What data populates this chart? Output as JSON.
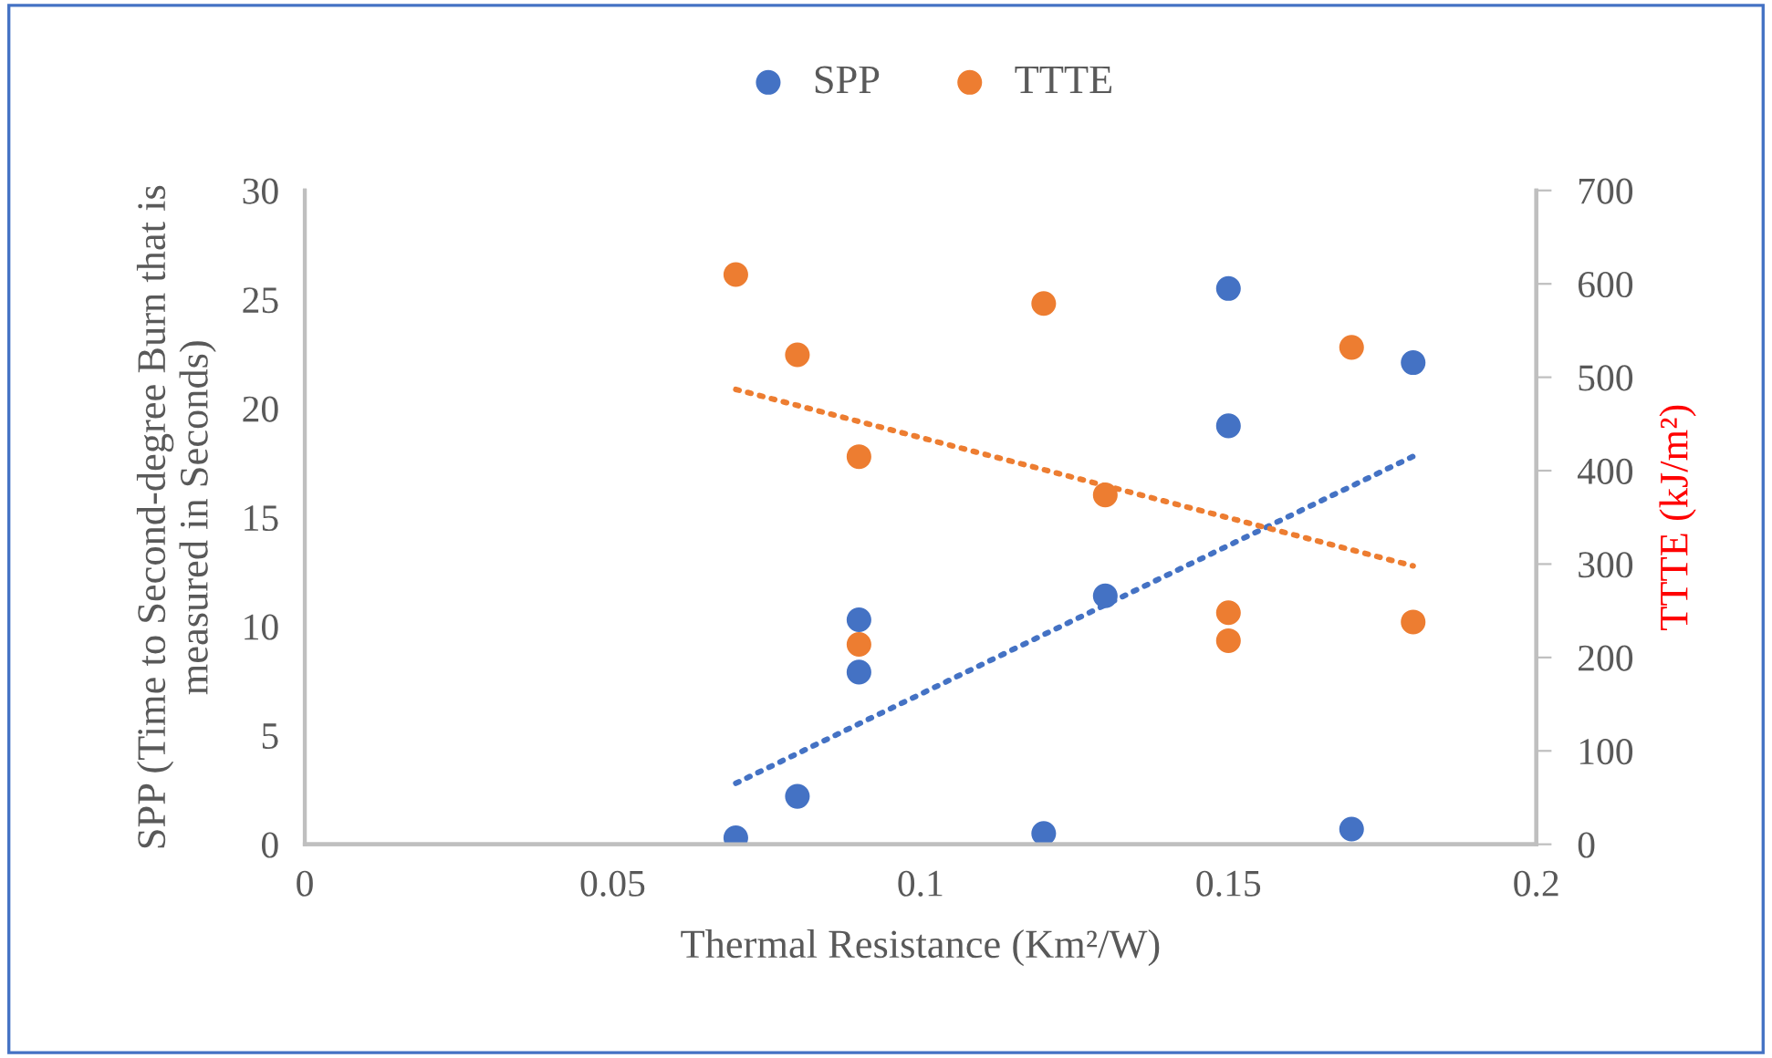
{
  "chart_data": {
    "type": "scatter",
    "xlabel": "Thermal Resistance (Km²/W)",
    "ylabel": "SPP (Time to Second-degree Burn that is\nmeasured in Seconds)",
    "y2label": "TTTE (kJ/m²)",
    "xlim": [
      0,
      0.2
    ],
    "xticks": [
      0,
      0.05,
      0.1,
      0.15,
      0.2
    ],
    "ylim": [
      0,
      30
    ],
    "yticks": [
      0,
      5,
      10,
      15,
      20,
      25,
      30
    ],
    "y2lim": [
      0,
      700
    ],
    "y2ticks": [
      0,
      100,
      200,
      300,
      400,
      500,
      600,
      700
    ],
    "legend": "top",
    "grid": false,
    "series": [
      {
        "name": "SPP",
        "color": "#4472c4",
        "marker": "circle",
        "x": [
          0.07,
          0.08,
          0.09,
          0.09,
          0.12,
          0.13,
          0.15,
          0.15,
          0.17,
          0.18
        ],
        "values": [
          0.3,
          2.2,
          10.3,
          7.9,
          0.5,
          11.4,
          25.5,
          19.2,
          0.7,
          22.1
        ]
      },
      {
        "name": "TTTE",
        "color": "#ed7d31",
        "marker": "circle",
        "axis": "y2",
        "x": [
          0.07,
          0.08,
          0.09,
          0.09,
          0.12,
          0.13,
          0.15,
          0.15,
          0.17,
          0.18
        ],
        "values": [
          610,
          524,
          415,
          214,
          579,
          374,
          248,
          218,
          532,
          238
        ]
      },
      {
        "type": "line",
        "line_style": "dotted",
        "color": "#4472c4",
        "x": [
          0.07,
          0.18
        ],
        "values": [
          2.8,
          17.8
        ]
      },
      {
        "type": "line",
        "line_style": "dotted",
        "color": "#ed7d31",
        "axis": "y2",
        "x": [
          0.07,
          0.18
        ],
        "values": [
          487,
          298
        ]
      }
    ]
  }
}
